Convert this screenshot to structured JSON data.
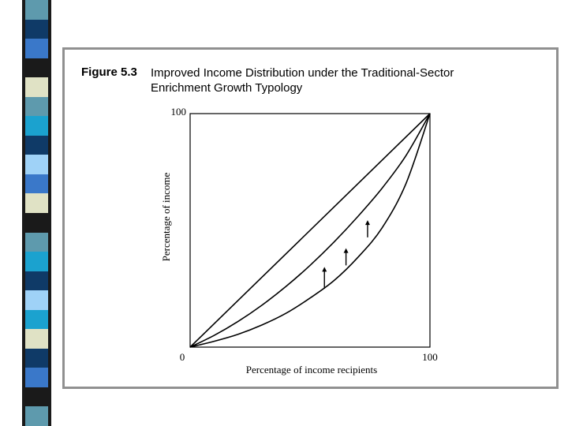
{
  "decor": {
    "strip_colors": [
      "#5e9aad",
      "#0f3a67",
      "#3a78c9",
      "#1a1a1a",
      "#e0e2c5",
      "#5e9aad",
      "#1ba2cf",
      "#0f3a67",
      "#9fd2f7",
      "#3a78c9",
      "#e0e2c5",
      "#1a1a1a",
      "#5e9aad",
      "#1ba2cf",
      "#0f3a67",
      "#9fd2f7",
      "#1ba2cf",
      "#e0e2c5",
      "#0f3a67",
      "#3a78c9",
      "#1a1a1a",
      "#5e9aad"
    ]
  },
  "figure": {
    "number": "Figure 5.3",
    "title": "Improved Income Distribution under the Traditional-Sector Enrichment Growth Typology"
  },
  "chart_data": {
    "type": "line",
    "xlabel": "Percentage of income recipients",
    "ylabel": "Percentage of income",
    "xlim": [
      0,
      100
    ],
    "ylim": [
      0,
      100
    ],
    "x_tick_labels": [
      "0",
      "100"
    ],
    "y_tick_labels": [
      "100"
    ],
    "grid": false,
    "legend": "none",
    "series": [
      {
        "points": [
          [
            0,
            0
          ],
          [
            100,
            100
          ]
        ]
      },
      {
        "points": [
          [
            0,
            0
          ],
          [
            10,
            5
          ],
          [
            20,
            11
          ],
          [
            30,
            18
          ],
          [
            40,
            26
          ],
          [
            50,
            35
          ],
          [
            60,
            45
          ],
          [
            70,
            56
          ],
          [
            80,
            68
          ],
          [
            90,
            82
          ],
          [
            100,
            100
          ]
        ]
      },
      {
        "points": [
          [
            0,
            0
          ],
          [
            10,
            2.5
          ],
          [
            20,
            5.5
          ],
          [
            30,
            9.5
          ],
          [
            40,
            14.5
          ],
          [
            50,
            21
          ],
          [
            60,
            28.5
          ],
          [
            70,
            38.5
          ],
          [
            80,
            51
          ],
          [
            90,
            70
          ],
          [
            100,
            100
          ]
        ]
      }
    ],
    "annotations": [
      {
        "type": "arrow",
        "x": 56,
        "from": 25,
        "to": 34
      },
      {
        "type": "arrow",
        "x": 65,
        "from": 35,
        "to": 42
      },
      {
        "type": "arrow",
        "x": 74,
        "from": 47,
        "to": 54
      }
    ]
  }
}
